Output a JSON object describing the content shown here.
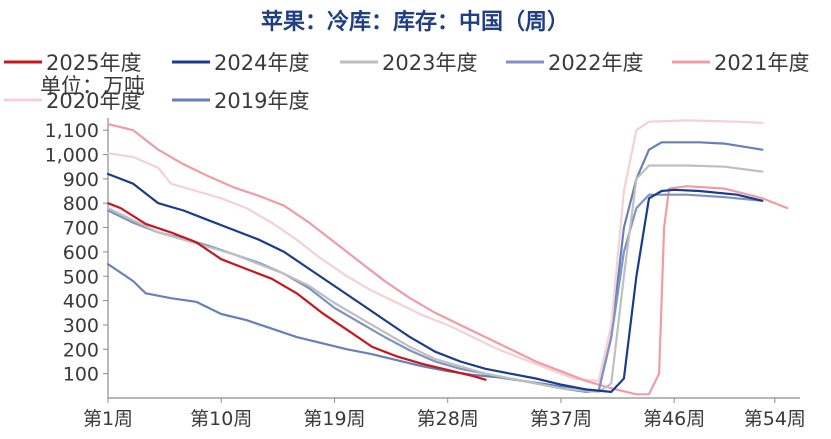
{
  "chart_data": {
    "type": "line",
    "title": "苹果：冷库：库存：中国（周）",
    "unit_label": "单位：万吨",
    "xlim": [
      1,
      56
    ],
    "ylim": [
      0,
      1150
    ],
    "y_ticks": [
      100,
      200,
      300,
      400,
      500,
      600,
      700,
      800,
      900,
      1000,
      1100
    ],
    "y_tick_labels": [
      "100",
      "200",
      "300",
      "400",
      "500",
      "600",
      "700",
      "800",
      "900",
      "1,000",
      "1,100"
    ],
    "x_ticks": [
      1,
      10,
      19,
      28,
      37,
      46,
      54
    ],
    "x_tick_labels": [
      "第1周",
      "第10周",
      "第19周",
      "第28周",
      "第37周",
      "第46周",
      "第54周"
    ],
    "legend_position": "top",
    "series": [
      {
        "name": "2025年度",
        "color": "#c8161d",
        "width": 2.2,
        "points": [
          [
            1,
            800
          ],
          [
            2,
            780
          ],
          [
            4,
            715
          ],
          [
            6,
            680
          ],
          [
            8,
            640
          ],
          [
            10,
            570
          ],
          [
            12,
            530
          ],
          [
            14,
            490
          ],
          [
            16,
            430
          ],
          [
            18,
            350
          ],
          [
            20,
            280
          ],
          [
            22,
            210
          ],
          [
            24,
            170
          ],
          [
            26,
            140
          ],
          [
            28,
            115
          ],
          [
            30,
            90
          ],
          [
            31,
            75
          ]
        ]
      },
      {
        "name": "2024年度",
        "color": "#1a3c8c",
        "width": 2.2,
        "points": [
          [
            1,
            920
          ],
          [
            3,
            880
          ],
          [
            5,
            800
          ],
          [
            7,
            770
          ],
          [
            9,
            730
          ],
          [
            11,
            690
          ],
          [
            13,
            650
          ],
          [
            15,
            600
          ],
          [
            17,
            530
          ],
          [
            19,
            460
          ],
          [
            21,
            390
          ],
          [
            23,
            320
          ],
          [
            25,
            250
          ],
          [
            27,
            190
          ],
          [
            29,
            150
          ],
          [
            31,
            120
          ],
          [
            33,
            100
          ],
          [
            35,
            80
          ],
          [
            37,
            55
          ],
          [
            39,
            35
          ],
          [
            41,
            25
          ],
          [
            42,
            80
          ],
          [
            43,
            500
          ],
          [
            44,
            820
          ],
          [
            45,
            850
          ],
          [
            46,
            855
          ],
          [
            48,
            850
          ],
          [
            51,
            835
          ],
          [
            53,
            810
          ]
        ]
      },
      {
        "name": "2023年度",
        "color": "#bfbfbf",
        "width": 2.2,
        "points": [
          [
            1,
            780
          ],
          [
            3,
            730
          ],
          [
            5,
            680
          ],
          [
            7,
            650
          ],
          [
            9,
            620
          ],
          [
            11,
            590
          ],
          [
            13,
            550
          ],
          [
            15,
            510
          ],
          [
            17,
            460
          ],
          [
            19,
            390
          ],
          [
            21,
            330
          ],
          [
            23,
            270
          ],
          [
            25,
            210
          ],
          [
            27,
            160
          ],
          [
            29,
            130
          ],
          [
            31,
            100
          ],
          [
            33,
            80
          ],
          [
            35,
            60
          ],
          [
            37,
            40
          ],
          [
            39,
            30
          ],
          [
            40,
            25
          ],
          [
            41,
            60
          ],
          [
            42,
            500
          ],
          [
            43,
            900
          ],
          [
            44,
            955
          ],
          [
            47,
            955
          ],
          [
            50,
            950
          ],
          [
            53,
            930
          ]
        ]
      },
      {
        "name": "2022年度",
        "color": "#7f93c3",
        "width": 2.2,
        "points": [
          [
            1,
            770
          ],
          [
            3,
            720
          ],
          [
            5,
            680
          ],
          [
            7,
            655
          ],
          [
            9,
            625
          ],
          [
            11,
            590
          ],
          [
            13,
            555
          ],
          [
            15,
            510
          ],
          [
            17,
            450
          ],
          [
            19,
            370
          ],
          [
            21,
            310
          ],
          [
            23,
            250
          ],
          [
            25,
            195
          ],
          [
            27,
            150
          ],
          [
            29,
            120
          ],
          [
            31,
            100
          ],
          [
            33,
            80
          ],
          [
            35,
            60
          ],
          [
            37,
            40
          ],
          [
            39,
            25
          ],
          [
            40,
            30
          ],
          [
            41,
            250
          ],
          [
            42,
            600
          ],
          [
            43,
            780
          ],
          [
            44,
            835
          ],
          [
            47,
            835
          ],
          [
            50,
            825
          ],
          [
            53,
            810
          ]
        ]
      },
      {
        "name": "2021年度",
        "color": "#f19ca5",
        "width": 2.2,
        "points": [
          [
            1,
            1125
          ],
          [
            3,
            1100
          ],
          [
            5,
            1020
          ],
          [
            7,
            960
          ],
          [
            9,
            910
          ],
          [
            11,
            865
          ],
          [
            13,
            830
          ],
          [
            15,
            790
          ],
          [
            17,
            720
          ],
          [
            19,
            640
          ],
          [
            21,
            560
          ],
          [
            23,
            480
          ],
          [
            25,
            410
          ],
          [
            27,
            350
          ],
          [
            29,
            300
          ],
          [
            31,
            250
          ],
          [
            33,
            200
          ],
          [
            35,
            150
          ],
          [
            37,
            110
          ],
          [
            39,
            70
          ],
          [
            41,
            40
          ],
          [
            43,
            15
          ],
          [
            44,
            15
          ],
          [
            44.8,
            100
          ],
          [
            45.2,
            700
          ],
          [
            45.6,
            860
          ],
          [
            47,
            870
          ],
          [
            50,
            860
          ],
          [
            53,
            820
          ],
          [
            55,
            780
          ]
        ]
      },
      {
        "name": "2020年度",
        "color": "#f6d0d4",
        "width": 2.2,
        "points": [
          [
            1,
            1005
          ],
          [
            3,
            990
          ],
          [
            5,
            945
          ],
          [
            6,
            880
          ],
          [
            8,
            850
          ],
          [
            10,
            820
          ],
          [
            12,
            780
          ],
          [
            14,
            720
          ],
          [
            16,
            650
          ],
          [
            18,
            570
          ],
          [
            20,
            500
          ],
          [
            22,
            440
          ],
          [
            24,
            390
          ],
          [
            26,
            340
          ],
          [
            28,
            300
          ],
          [
            30,
            250
          ],
          [
            32,
            200
          ],
          [
            34,
            160
          ],
          [
            36,
            120
          ],
          [
            38,
            80
          ],
          [
            40,
            70
          ],
          [
            41,
            300
          ],
          [
            42,
            850
          ],
          [
            43,
            1100
          ],
          [
            44,
            1135
          ],
          [
            47,
            1140
          ],
          [
            51,
            1135
          ],
          [
            53,
            1130
          ]
        ]
      },
      {
        "name": "2019年度",
        "color": "#6680b8",
        "width": 2.2,
        "points": [
          [
            1,
            550
          ],
          [
            3,
            480
          ],
          [
            4,
            430
          ],
          [
            6,
            410
          ],
          [
            8,
            395
          ],
          [
            10,
            345
          ],
          [
            12,
            320
          ],
          [
            14,
            285
          ],
          [
            16,
            250
          ],
          [
            18,
            225
          ],
          [
            20,
            200
          ],
          [
            22,
            180
          ],
          [
            24,
            155
          ],
          [
            26,
            130
          ],
          [
            28,
            110
          ],
          [
            30,
            95
          ],
          [
            32,
            85
          ],
          [
            34,
            70
          ],
          [
            36,
            55
          ],
          [
            38,
            40
          ],
          [
            40,
            30
          ],
          [
            41,
            250
          ],
          [
            42,
            700
          ],
          [
            43,
            900
          ],
          [
            44,
            1020
          ],
          [
            45,
            1050
          ],
          [
            48,
            1050
          ],
          [
            50,
            1045
          ],
          [
            53,
            1020
          ]
        ]
      }
    ]
  }
}
